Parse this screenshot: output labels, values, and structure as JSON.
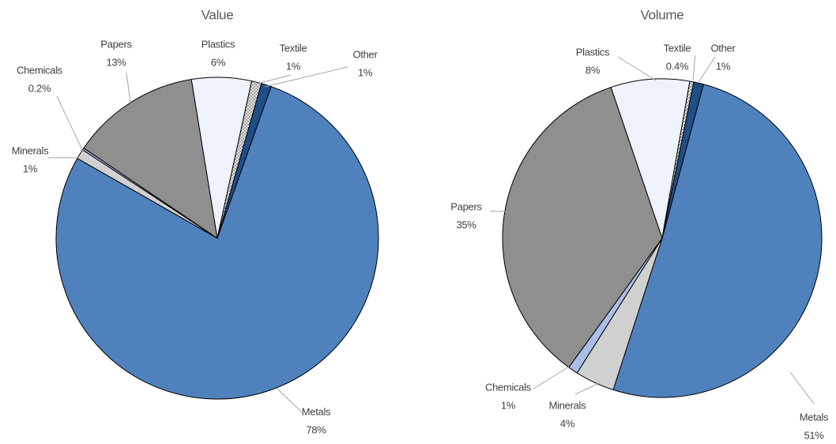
{
  "chart_data": [
    {
      "type": "pie",
      "title": "Value",
      "categories": [
        "Metals",
        "Minerals",
        "Chemicals",
        "Papers",
        "Plastics",
        "Textile",
        "Other"
      ],
      "values": [
        78,
        1,
        0.2,
        13,
        6,
        1,
        1
      ],
      "value_labels": [
        "78%",
        "1%",
        "0.2%",
        "13%",
        "6%",
        "1%",
        "1%"
      ],
      "colors": [
        "#4f81bd",
        "#d0d0d0",
        "#a9bfe8",
        "#8f8f8f",
        "#eef2fa",
        "hatch",
        "#1f4e89"
      ]
    },
    {
      "type": "pie",
      "title": "Volume",
      "categories": [
        "Metals",
        "Minerals",
        "Chemicals",
        "Papers",
        "Plastics",
        "Textile",
        "Other"
      ],
      "values": [
        51,
        4,
        1,
        35,
        8,
        0.4,
        1
      ],
      "value_labels": [
        "51%",
        "4%",
        "1%",
        "35%",
        "8%",
        "0.4%",
        "1%"
      ],
      "colors": [
        "#4f81bd",
        "#d0d0d0",
        "#a9bfe8",
        "#8f8f8f",
        "#eef2fa",
        "hatch",
        "#1f4e89"
      ]
    }
  ]
}
